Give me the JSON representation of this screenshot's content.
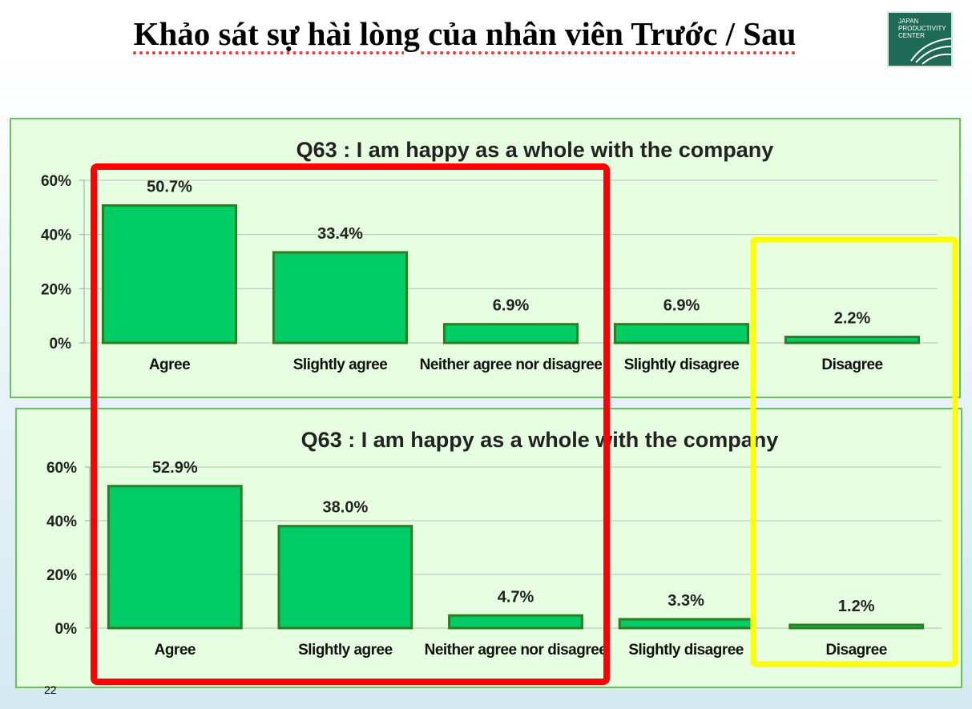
{
  "slide": {
    "title": "Khảo sát sự hài lòng của nhân viên Trước / Sau",
    "logo_text": [
      "JAPAN",
      "PRODUCTIVITY",
      "CENTER"
    ],
    "page_number": "22",
    "highlight_colors": {
      "red_box": "#ff0000",
      "yellow_box": "#ffff00"
    }
  },
  "chart_data": [
    {
      "type": "bar",
      "title": "Q63 : I am happy as a whole with the company",
      "categories": [
        "Agree",
        "Slightly agree",
        "Neither agree nor disagree",
        "Slightly disagree",
        "Disagree"
      ],
      "values": [
        50.7,
        33.4,
        6.9,
        6.9,
        2.2
      ],
      "data_labels": [
        "50.7%",
        "33.4%",
        "6.9%",
        "6.9%",
        "2.2%"
      ],
      "yticks": [
        "0%",
        "20%",
        "40%",
        "60%"
      ],
      "ylim": [
        0,
        60
      ],
      "grid": true,
      "bar_color": "#00cc66",
      "bar_border_color": "#2e7d22",
      "panel_color": "#e6ffe0"
    },
    {
      "type": "bar",
      "title": "Q63 : I am happy as a whole with the company",
      "categories": [
        "Agree",
        "Slightly agree",
        "Neither agree nor disagree",
        "Slightly disagree",
        "Disagree"
      ],
      "values": [
        52.9,
        38.0,
        4.7,
        3.3,
        1.2
      ],
      "data_labels": [
        "52.9%",
        "38.0%",
        "4.7%",
        "3.3%",
        "1.2%"
      ],
      "yticks": [
        "0%",
        "20%",
        "40%",
        "60%"
      ],
      "ylim": [
        0,
        60
      ],
      "grid": true,
      "bar_color": "#00cc66",
      "bar_border_color": "#2e7d22",
      "panel_color": "#e6ffe0"
    }
  ]
}
